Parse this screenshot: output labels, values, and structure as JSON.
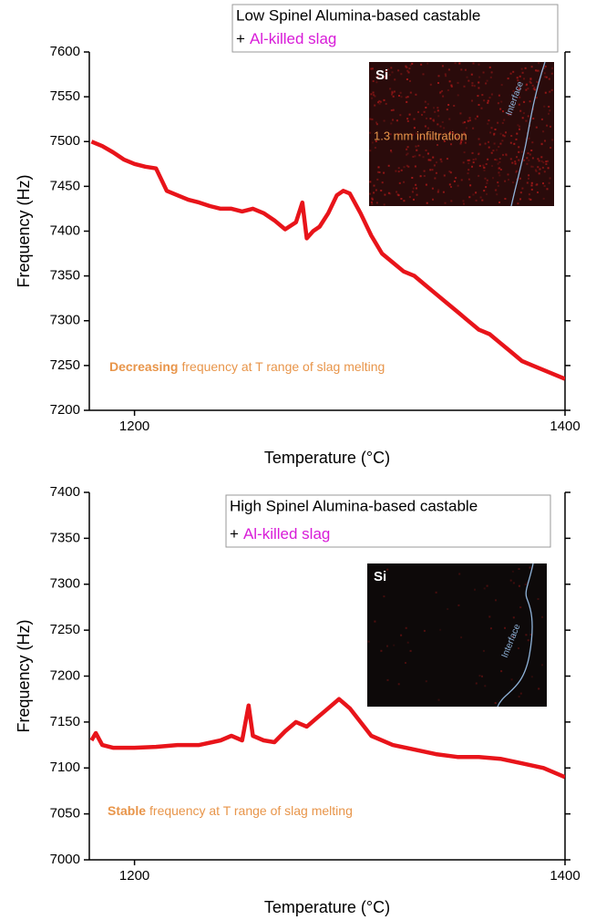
{
  "chart_data": [
    {
      "type": "line",
      "box_title": "Low Spinel Alumina-based castable",
      "box_plus": "+",
      "box_slag": "Al-killed slag",
      "box_slag_color": "#d81bd8",
      "x_label": "Temperature (°C)",
      "y_label": "Frequency (Hz)",
      "annotation_emphasis": "Decreasing",
      "annotation": "frequency at T range of slag melting",
      "annotation_color": "#e8954a",
      "inset_element": "Si",
      "inset_interface": "Interface",
      "inset_note": "1.3 mm infiltration",
      "xlim": [
        1179,
        1400
      ],
      "xticks": [
        1200,
        1400
      ],
      "ylim": [
        7200,
        7600
      ],
      "yticks": [
        7200,
        7250,
        7300,
        7350,
        7400,
        7450,
        7500,
        7550,
        7600
      ],
      "series": [
        {
          "color": "#e8141a",
          "x": [
            1180,
            1185,
            1190,
            1195,
            1200,
            1205,
            1210,
            1215,
            1220,
            1225,
            1230,
            1235,
            1240,
            1245,
            1250,
            1255,
            1260,
            1265,
            1270,
            1275,
            1278,
            1280,
            1283,
            1286,
            1290,
            1294,
            1297,
            1300,
            1305,
            1310,
            1315,
            1320,
            1325,
            1330,
            1335,
            1340,
            1345,
            1350,
            1355,
            1360,
            1365,
            1370,
            1375,
            1380,
            1385,
            1390,
            1395,
            1400
          ],
          "values": [
            7500,
            7495,
            7488,
            7480,
            7475,
            7472,
            7470,
            7445,
            7440,
            7435,
            7432,
            7428,
            7425,
            7425,
            7422,
            7425,
            7420,
            7412,
            7402,
            7410,
            7432,
            7392,
            7400,
            7405,
            7420,
            7440,
            7445,
            7442,
            7420,
            7395,
            7375,
            7365,
            7355,
            7350,
            7340,
            7330,
            7320,
            7310,
            7300,
            7290,
            7285,
            7275,
            7265,
            7255,
            7250,
            7245,
            7240,
            7235
          ]
        }
      ]
    },
    {
      "type": "line",
      "box_title": "High Spinel Alumina-based castable",
      "box_plus": "+",
      "box_slag": "Al-killed slag",
      "box_slag_color": "#d81bd8",
      "x_label": "Temperature (°C)",
      "y_label": "Frequency (Hz)",
      "annotation_emphasis": "Stable",
      "annotation": "frequency at T range of slag melting",
      "annotation_color": "#e8954a",
      "inset_element": "Si",
      "inset_interface": "Interface",
      "xlim": [
        1179,
        1400
      ],
      "xticks": [
        1200,
        1400
      ],
      "ylim": [
        7000,
        7400
      ],
      "yticks": [
        7000,
        7050,
        7100,
        7150,
        7200,
        7250,
        7300,
        7350,
        7400
      ],
      "series": [
        {
          "color": "#e8141a",
          "x": [
            1180,
            1182,
            1185,
            1190,
            1200,
            1210,
            1220,
            1230,
            1240,
            1245,
            1250,
            1253,
            1255,
            1260,
            1265,
            1270,
            1275,
            1280,
            1285,
            1290,
            1295,
            1300,
            1305,
            1310,
            1320,
            1330,
            1340,
            1350,
            1360,
            1370,
            1380,
            1390,
            1400
          ],
          "values": [
            7130,
            7138,
            7125,
            7122,
            7122,
            7123,
            7125,
            7125,
            7130,
            7135,
            7130,
            7168,
            7135,
            7130,
            7128,
            7140,
            7150,
            7145,
            7155,
            7165,
            7175,
            7165,
            7150,
            7135,
            7125,
            7120,
            7115,
            7112,
            7112,
            7110,
            7105,
            7100,
            7090
          ]
        }
      ]
    }
  ]
}
